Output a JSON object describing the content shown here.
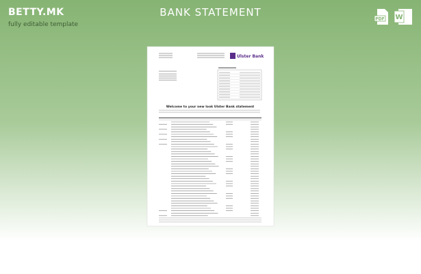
{
  "header": {
    "logo": "BETTY.MK",
    "tagline": "fully editable template",
    "title": "BANK STATEMENT",
    "formats": [
      "PDF",
      "W"
    ]
  },
  "document": {
    "bank": "Ulster Bank",
    "welcome": "Welcome to your new look Ulster Bank statement"
  }
}
